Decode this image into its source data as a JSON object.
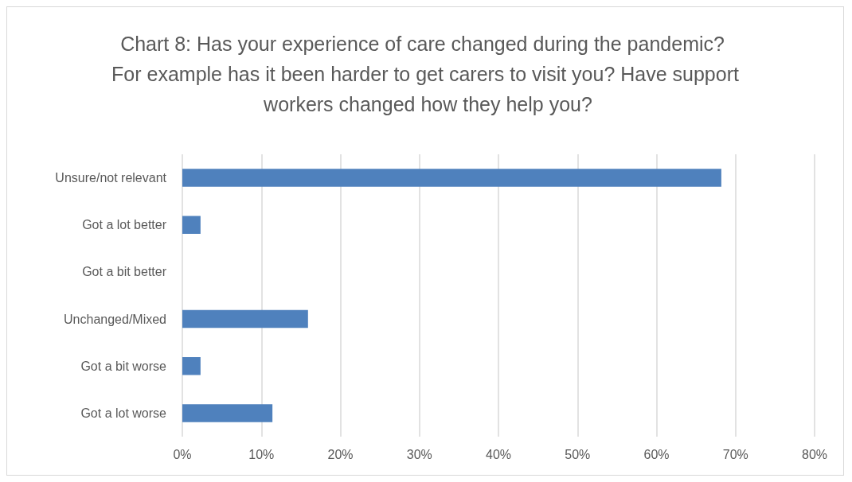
{
  "chart_data": {
    "type": "bar",
    "orientation": "horizontal",
    "title": "Chart 8: Has your experience of care changed during the pandemic? For example has it been harder to get carers to visit you? Have support workers changed how they help you?",
    "categories": [
      "Unsure/not relevant",
      "Got a lot better",
      "Got a bit better",
      "Unchanged/Mixed",
      "Got a bit worse",
      "Got a lot worse"
    ],
    "values": [
      68.2,
      2.3,
      0,
      15.9,
      2.3,
      11.4
    ],
    "color": "#4f81bd",
    "xlim": [
      0,
      80
    ],
    "xticks": [
      {
        "value": 0,
        "label": "0%"
      },
      {
        "value": 10,
        "label": "10%"
      },
      {
        "value": 20,
        "label": "20%"
      },
      {
        "value": 30,
        "label": "30%"
      },
      {
        "value": 40,
        "label": "40%"
      },
      {
        "value": 50,
        "label": "50%"
      },
      {
        "value": 60,
        "label": "60%"
      },
      {
        "value": 70,
        "label": "70%"
      },
      {
        "value": 80,
        "label": "80%"
      }
    ],
    "grid": "x"
  }
}
